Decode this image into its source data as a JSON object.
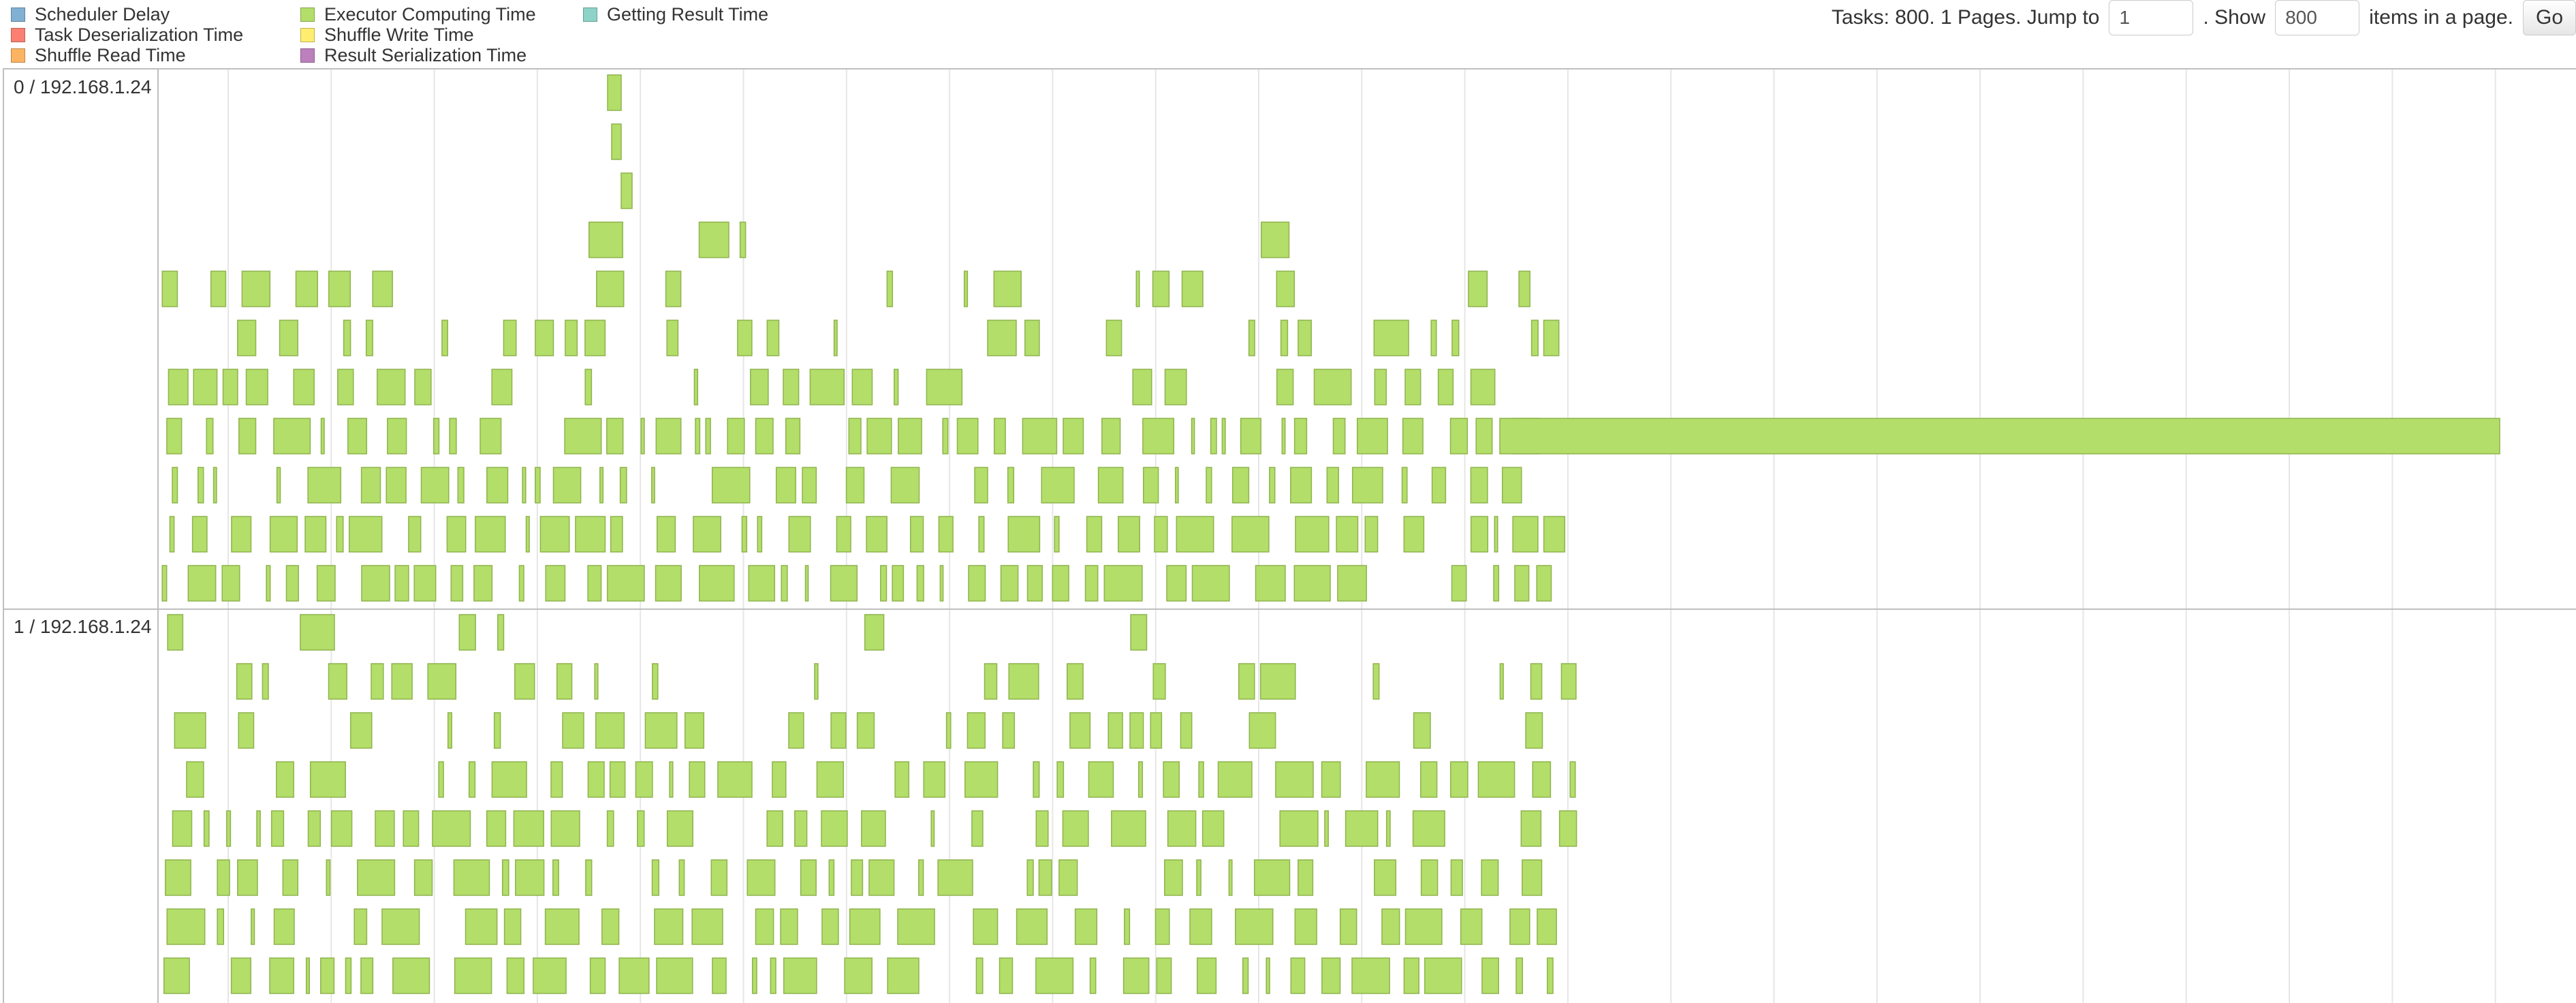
{
  "legend": {
    "items": [
      {
        "label": "Scheduler Delay",
        "color": "#80b1d3"
      },
      {
        "label": "Task Deserialization Time",
        "color": "#fb8072"
      },
      {
        "label": "Shuffle Read Time",
        "color": "#fdb462"
      },
      {
        "label": "Executor Computing Time",
        "color": "#b3de69"
      },
      {
        "label": "Shuffle Write Time",
        "color": "#ffed6f"
      },
      {
        "label": "Result Serialization Time",
        "color": "#bc80bd"
      },
      {
        "label": "Getting Result Time",
        "color": "#8dd3c7"
      }
    ]
  },
  "paging": {
    "prefix": "Tasks: 800. 1 Pages. Jump to",
    "jump_value": "1",
    "show_label": ". Show",
    "show_value": "800",
    "suffix": "items in a page.",
    "go_label": "Go"
  },
  "timeline": {
    "groups": [
      {
        "label": "0 / 192.168.1.24"
      },
      {
        "label": "1 / 192.168.1.24"
      }
    ]
  }
}
